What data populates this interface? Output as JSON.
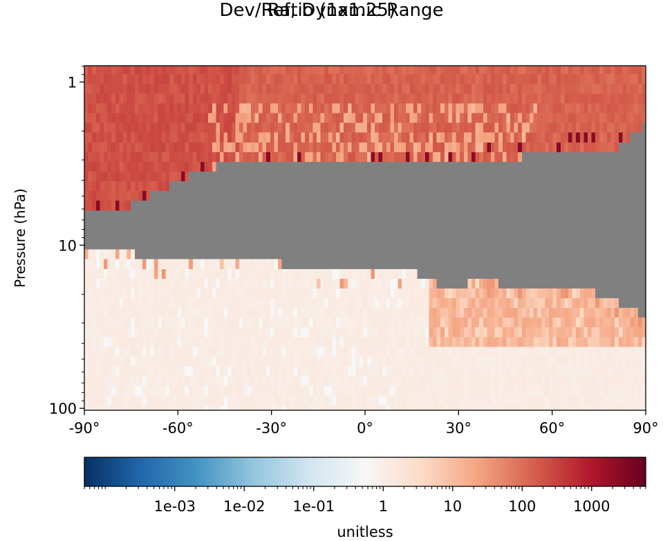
{
  "title_line1": "Ratio (1x1.25)",
  "title_line2": "Dev/Ref, Dynamic Range",
  "ylabel": "Pressure (hPa)",
  "colorbar_label": "unitless",
  "colors": {
    "nan": "#808080",
    "cmap": [
      "#053061",
      "#2166ac",
      "#4393c3",
      "#92c5de",
      "#d1e5f0",
      "#f7f7f7",
      "#fddbc7",
      "#f4a582",
      "#d6604d",
      "#b2182b",
      "#67001f"
    ]
  },
  "chart_data": {
    "type": "heatmap",
    "title": "Ratio (1x1.25)",
    "subtitle": "Dev/Ref, Dynamic Range",
    "xlabel": "",
    "ylabel": "Pressure (hPa)",
    "xlim": [
      -90,
      90
    ],
    "ylim": [
      1,
      100
    ],
    "y_scale": "log",
    "y_inverted": true,
    "x_ticks": [
      -90,
      -60,
      -30,
      0,
      30,
      60,
      90
    ],
    "x_tick_labels": [
      "-90°",
      "-60°",
      "-30°",
      "0°",
      "30°",
      "60°",
      "90°"
    ],
    "y_ticks": [
      1,
      10,
      100
    ],
    "y_tick_labels": [
      "1",
      "10",
      "100"
    ],
    "colorbar": {
      "label": "unitless",
      "scale": "log",
      "range": [
        5e-05,
        6000
      ],
      "ticks": [
        0.001,
        0.01,
        0.1,
        1,
        10,
        100,
        1000
      ],
      "tick_labels": [
        "1e-03",
        "1e-02",
        "1e-01",
        "1",
        "10",
        "100",
        "1000"
      ]
    },
    "missing_value_color": "gray",
    "approximate_fields": {
      "upper_layer_ratio_typical": 120,
      "upper_layer_ratio_light_patches": 20,
      "lower_layer_ratio_typical": 1.1,
      "southern_edge_max_ratio": 2500,
      "missing_region": [
        {
          "lat": -90,
          "p_top": 6.5,
          "p_bottom": 11.2
        },
        {
          "lat": -80,
          "p_top": 6.3,
          "p_bottom": 11.2
        },
        {
          "lat": -75,
          "p_top": 5.8,
          "p_bottom": 11.2
        },
        {
          "lat": -65,
          "p_top": 4.5,
          "p_bottom": 12.5
        },
        {
          "lat": -55,
          "p_top": 3.7,
          "p_bottom": 12.5
        },
        {
          "lat": -45,
          "p_top": 3.2,
          "p_bottom": 12.5
        },
        {
          "lat": -30,
          "p_top": 3.2,
          "p_bottom": 12.5
        },
        {
          "lat": -20,
          "p_top": 3.2,
          "p_bottom": 14.5
        },
        {
          "lat": 0,
          "p_top": 3.2,
          "p_bottom": 14.5
        },
        {
          "lat": 15,
          "p_top": 3.2,
          "p_bottom": 14.5
        },
        {
          "lat": 25,
          "p_top": 3.2,
          "p_bottom": 17.8
        },
        {
          "lat": 30,
          "p_top": 3.2,
          "p_bottom": 17.8
        },
        {
          "lat": 40,
          "p_top": 2.9,
          "p_bottom": 16
        },
        {
          "lat": 45,
          "p_top": 3.2,
          "p_bottom": 17.8
        },
        {
          "lat": 55,
          "p_top": 2.6,
          "p_bottom": 17.8
        },
        {
          "lat": 65,
          "p_top": 2.6,
          "p_bottom": 17.8
        },
        {
          "lat": 75,
          "p_top": 2.6,
          "p_bottom": 20
        },
        {
          "lat": 80,
          "p_top": 2.6,
          "p_bottom": 22
        },
        {
          "lat": 85,
          "p_top": 2.2,
          "p_bottom": 24
        },
        {
          "lat": 90,
          "p_top": 1.8,
          "p_bottom": 28
        }
      ]
    }
  }
}
